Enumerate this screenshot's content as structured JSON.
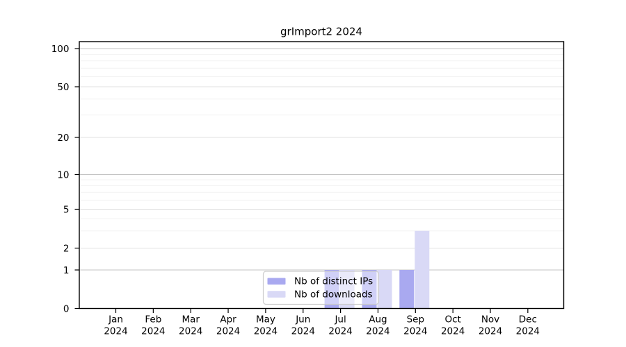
{
  "chart_data": {
    "type": "bar",
    "title": "grImport2 2024",
    "categories": [
      "Jan",
      "Feb",
      "Mar",
      "Apr",
      "May",
      "Jun",
      "Jul",
      "Aug",
      "Sep",
      "Oct",
      "Nov",
      "Dec"
    ],
    "year": "2024",
    "series": [
      {
        "name": "Nb of distinct IPs",
        "color": "#a9a9f0",
        "values": [
          0,
          0,
          0,
          0,
          0,
          0,
          1,
          1,
          1,
          0,
          0,
          0
        ]
      },
      {
        "name": "Nb of downloads",
        "color": "#d9d9f6",
        "values": [
          0,
          0,
          0,
          0,
          0,
          0,
          1,
          1,
          3,
          0,
          0,
          0
        ]
      }
    ],
    "y_ticks": [
      0,
      1,
      2,
      5,
      10,
      20,
      50,
      100
    ],
    "y_minor_ticks": [
      3,
      4,
      6,
      7,
      8,
      9,
      30,
      40,
      60,
      70,
      80,
      90
    ],
    "ylim": [
      0,
      110
    ],
    "yscale": "log-like with zero baseline",
    "xlabel": "",
    "ylabel": "",
    "grid": "horizontal",
    "legend_position": "bottom-center",
    "colors": {
      "grid_power10": "#c3c3c3",
      "grid_major": "#e0e0e0",
      "grid_minor": "#f2f2f2",
      "axis": "#000000",
      "text": "#000000",
      "background": "#ffffff",
      "legend_border": "#cccccc",
      "legend_fill": "rgba(255,255,255,0.45)"
    }
  }
}
